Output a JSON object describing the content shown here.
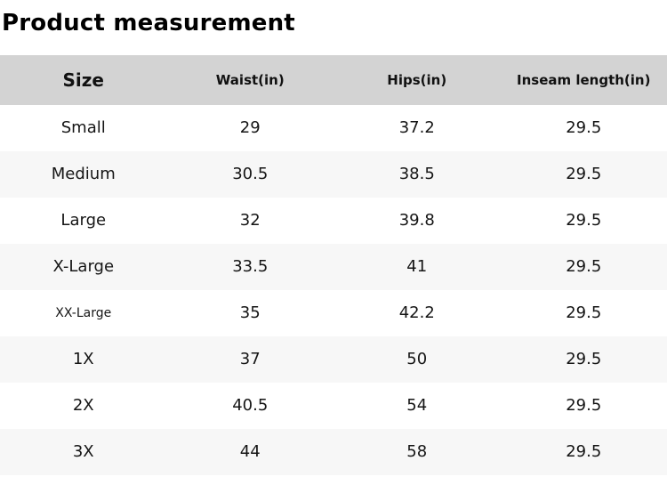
{
  "page": {
    "title": "Product measurement"
  },
  "table": {
    "columns": [
      {
        "id": "size",
        "label": "Size"
      },
      {
        "id": "waist",
        "label": "Waist(in)"
      },
      {
        "id": "hips",
        "label": "Hips(in)"
      },
      {
        "id": "inseam",
        "label": "Inseam length(in)"
      }
    ],
    "rows": [
      {
        "size": "Small",
        "waist": "29",
        "hips": "37.2",
        "inseam": "29.5"
      },
      {
        "size": "Medium",
        "waist": "30.5",
        "hips": "38.5",
        "inseam": "29.5"
      },
      {
        "size": "Large",
        "waist": "32",
        "hips": "39.8",
        "inseam": "29.5"
      },
      {
        "size": "X-Large",
        "waist": "33.5",
        "hips": "41",
        "inseam": "29.5"
      },
      {
        "size": "XX-Large",
        "waist": "35",
        "hips": "42.2",
        "inseam": "29.5",
        "compact_label": true
      },
      {
        "size": "1X",
        "waist": "37",
        "hips": "50",
        "inseam": "29.5"
      },
      {
        "size": "2X",
        "waist": "40.5",
        "hips": "54",
        "inseam": "29.5"
      },
      {
        "size": "3X",
        "waist": "44",
        "hips": "58",
        "inseam": "29.5"
      }
    ]
  },
  "colors": {
    "header_bg": "#d3d3d3",
    "row_stripe_bg": "#f7f7f7",
    "row_bg": "#ffffff",
    "text": "#151515"
  }
}
